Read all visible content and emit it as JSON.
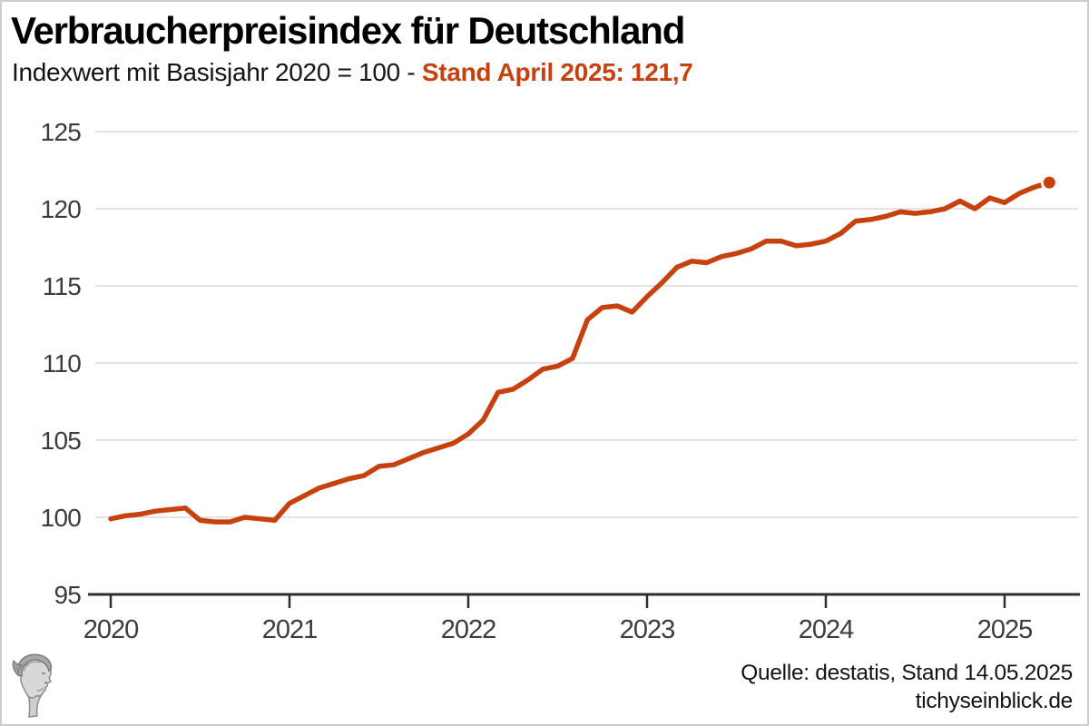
{
  "header": {
    "title": "Verbraucherpreisindex für Deutschland",
    "subtitle_plain": "Indexwert mit Basisjahr 2020 = 100 - ",
    "subtitle_highlight": "Stand April 2025: 121,7"
  },
  "footer": {
    "source": "Quelle: destatis, Stand 14.05.2025",
    "site": "tichyseinblick.de"
  },
  "logo_name": "tichys-einblick-classical-head",
  "colors": {
    "accent": "#c6410e",
    "grid": "#e3e3e3",
    "axis_line": "#2e2e2e",
    "tick_text": "#3c3c3c",
    "marker_ring": "#ffffff"
  },
  "chart_data": {
    "type": "line",
    "title": "Verbraucherpreisindex für Deutschland",
    "subtitle": "Indexwert mit Basisjahr 2020 = 100 - Stand April 2025: 121,7",
    "x_unit": "month",
    "x_start_label": "2020",
    "x_tick_labels": [
      "2020",
      "2021",
      "2022",
      "2023",
      "2024",
      "2025"
    ],
    "x_tick_month_indices": [
      0,
      12,
      24,
      36,
      48,
      60
    ],
    "y_ticks": [
      95,
      100,
      105,
      110,
      115,
      120,
      125
    ],
    "ylim": [
      95,
      125.3
    ],
    "grid": "horizontal-only",
    "legend": "none",
    "series": [
      {
        "name": "Verbraucherpreisindex (2020 = 100)",
        "first_month": "Januar 2020",
        "last_month": "April 2025",
        "values": [
          99.9,
          100.1,
          100.2,
          100.4,
          100.5,
          100.6,
          99.8,
          99.7,
          99.7,
          100.0,
          99.9,
          99.8,
          100.9,
          101.4,
          101.9,
          102.2,
          102.5,
          102.7,
          103.3,
          103.4,
          103.8,
          104.2,
          104.5,
          104.8,
          105.4,
          106.3,
          108.1,
          108.3,
          108.9,
          109.6,
          109.8,
          110.3,
          112.8,
          113.6,
          113.7,
          113.3,
          114.3,
          115.2,
          116.2,
          116.6,
          116.5,
          116.9,
          117.1,
          117.4,
          117.9,
          117.9,
          117.6,
          117.7,
          117.9,
          118.4,
          119.2,
          119.3,
          119.5,
          119.8,
          119.7,
          119.8,
          120.0,
          120.5,
          120.0,
          120.7,
          120.4,
          121.0,
          121.4,
          121.7
        ]
      }
    ],
    "last_point": {
      "label": "April 2025",
      "value": 121.7,
      "marker": "dot"
    }
  }
}
